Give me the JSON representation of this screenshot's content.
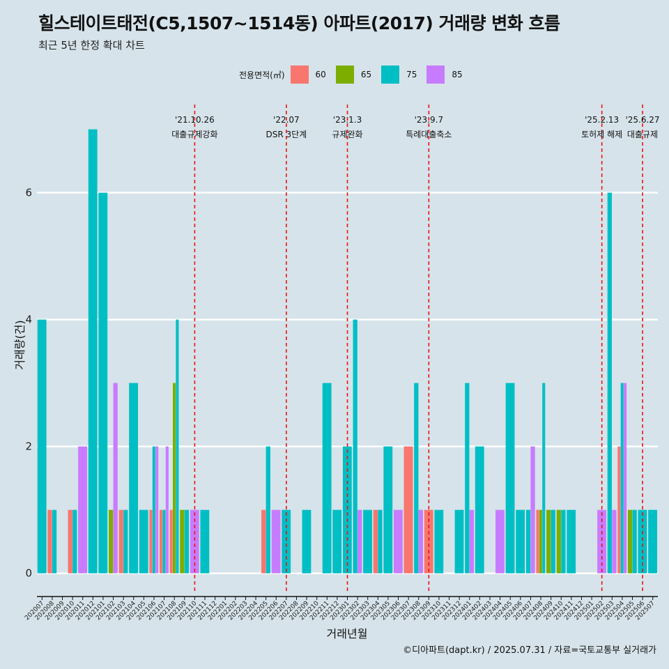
{
  "title": "힐스테이트태전(C5,1507~1514동) 아파트(2017) 거래량 변화 흐름",
  "subtitle": "최근 5년 한정 확대 차트",
  "legend": {
    "title": "전용면적(㎡)",
    "items": [
      {
        "label": "60",
        "color": "#f8766d"
      },
      {
        "label": "65",
        "color": "#7cae00"
      },
      {
        "label": "75",
        "color": "#00bfc4"
      },
      {
        "label": "85",
        "color": "#c77cff"
      }
    ]
  },
  "caption": "©디아파트(dapt.kr) / 2025.07.31 / 자료=국토교통부 실거래가",
  "chart_data": {
    "type": "bar",
    "xlabel": "거래년월",
    "ylabel": "거래량(건)",
    "ylim": [
      -0.3,
      7.5
    ],
    "yticks": [
      0,
      2,
      4,
      6
    ],
    "grid": true,
    "categories": [
      "202007",
      "202008",
      "202009",
      "202010",
      "202011",
      "202012",
      "202101",
      "202102",
      "202103",
      "202104",
      "202105",
      "202106",
      "202107",
      "202108",
      "202109",
      "202110",
      "202111",
      "202112",
      "202201",
      "202202",
      "202203",
      "202204",
      "202205",
      "202206",
      "202207",
      "202208",
      "202209",
      "202210",
      "202211",
      "202212",
      "202301",
      "202302",
      "202303",
      "202304",
      "202305",
      "202306",
      "202307",
      "202308",
      "202309",
      "202310",
      "202311",
      "202312",
      "202401",
      "202402",
      "202403",
      "202404",
      "202405",
      "202406",
      "202407",
      "202408",
      "202409",
      "202410",
      "202411",
      "202412",
      "202501",
      "202502",
      "202503",
      "202504",
      "202505",
      "202506",
      "202507"
    ],
    "series": [
      {
        "name": "60",
        "color": "#f8766d",
        "values": [
          0,
          1,
          0,
          1,
          0,
          0,
          0,
          0,
          1,
          0,
          0,
          1,
          1,
          1,
          0,
          0,
          0,
          0,
          0,
          0,
          0,
          0,
          1,
          0,
          0,
          0,
          0,
          0,
          0,
          0,
          0,
          0,
          0,
          1,
          0,
          0,
          2,
          0,
          1,
          0,
          0,
          0,
          0,
          0,
          0,
          0,
          0,
          0,
          0,
          1,
          0,
          0,
          0,
          0,
          0,
          0,
          0,
          2,
          0,
          0,
          0
        ]
      },
      {
        "name": "65",
        "color": "#7cae00",
        "values": [
          0,
          0,
          0,
          0,
          0,
          0,
          0,
          1,
          0,
          0,
          0,
          0,
          0,
          3,
          1,
          0,
          0,
          0,
          0,
          0,
          0,
          0,
          0,
          0,
          0,
          0,
          0,
          0,
          0,
          0,
          0,
          0,
          0,
          0,
          0,
          0,
          0,
          0,
          0,
          0,
          0,
          0,
          0,
          0,
          0,
          0,
          0,
          0,
          0,
          1,
          1,
          1,
          0,
          0,
          0,
          0,
          0,
          0,
          1,
          0,
          0
        ]
      },
      {
        "name": "75",
        "color": "#00bfc4",
        "values": [
          4,
          1,
          0,
          1,
          0,
          7,
          6,
          0,
          1,
          3,
          1,
          2,
          1,
          4,
          1,
          0,
          1,
          0,
          0,
          0,
          0,
          0,
          2,
          0,
          1,
          0,
          1,
          0,
          3,
          1,
          2,
          4,
          1,
          1,
          2,
          0,
          0,
          3,
          0,
          1,
          0,
          1,
          3,
          2,
          0,
          0,
          3,
          1,
          1,
          3,
          1,
          1,
          1,
          0,
          0,
          0,
          6,
          3,
          1,
          1,
          1
        ]
      },
      {
        "name": "85",
        "color": "#c77cff",
        "values": [
          0,
          0,
          0,
          0,
          2,
          0,
          0,
          3,
          0,
          0,
          0,
          2,
          2,
          0,
          0,
          1,
          0,
          0,
          0,
          0,
          0,
          0,
          0,
          1,
          0,
          0,
          0,
          0,
          0,
          0,
          0,
          1,
          0,
          0,
          0,
          1,
          0,
          1,
          0,
          0,
          0,
          0,
          1,
          0,
          0,
          1,
          0,
          0,
          2,
          0,
          0,
          0,
          0,
          0,
          0,
          1,
          1,
          3,
          0,
          0,
          0
        ]
      }
    ],
    "events": [
      {
        "date": "202110",
        "line1": "'21.10.26",
        "line2": "대출규제강화"
      },
      {
        "date": "202207",
        "line1": "'22.07",
        "line2": "DSR 3단계"
      },
      {
        "date": "202301",
        "line1": "'23.1.3",
        "line2": "규제완화"
      },
      {
        "date": "202309",
        "line1": "'23.9.7",
        "line2": "특례대출축소"
      },
      {
        "date": "202502",
        "line1": "'25.2.13",
        "line2": "토허제 해제"
      },
      {
        "date": "202506",
        "line1": "'25.6.27",
        "line2": "대출규제"
      }
    ]
  }
}
